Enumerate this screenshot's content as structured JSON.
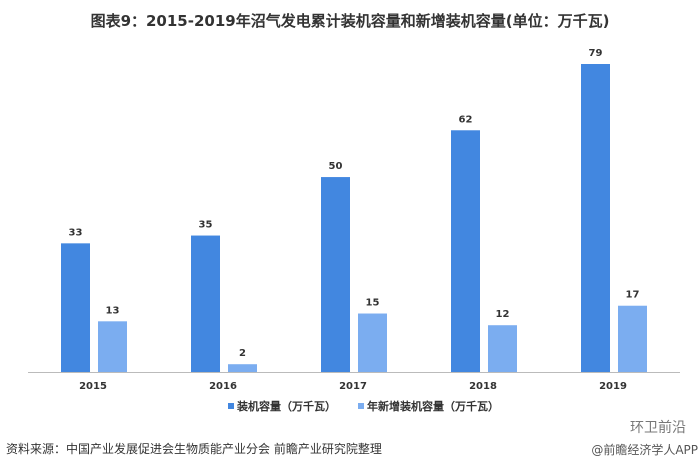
{
  "chart_data": {
    "type": "bar",
    "title": "图表9：2015-2019年沼气发电累计装机容量和新增装机容量(单位：万千瓦)",
    "categories": [
      "2015",
      "2016",
      "2017",
      "2018",
      "2019"
    ],
    "series": [
      {
        "name": "装机容量（万千瓦）",
        "values": [
          33,
          35,
          50,
          62,
          79
        ],
        "color": "#4287e0"
      },
      {
        "name": "年新增装机容量（万千瓦）",
        "values": [
          13,
          2,
          15,
          12,
          17
        ],
        "color": "#7badf0"
      }
    ],
    "ylim": [
      0,
      79
    ],
    "grid": false,
    "data_labels": true,
    "legend": "bottom"
  },
  "source": "资料来源：中国产业发展促进会生物质能产业分会 前瞻产业研究院整理",
  "credit": "@前瞻经济学人APP",
  "watermark": "环卫前沿"
}
